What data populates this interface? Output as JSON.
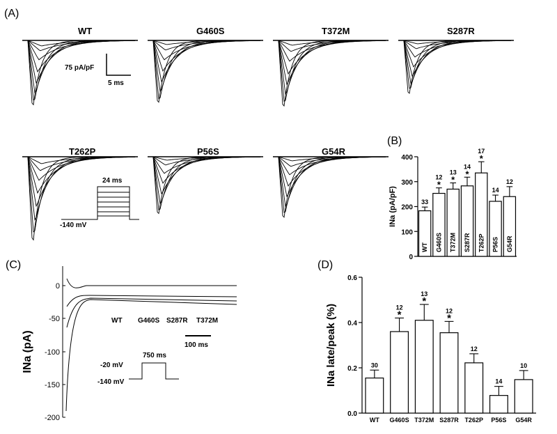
{
  "panels": {
    "a_label": "(A)",
    "b_label": "(B)",
    "c_label": "(C)",
    "d_label": "(D)"
  },
  "panel_a": {
    "traces": [
      "WT",
      "G460S",
      "T372M",
      "S287R",
      "T262P",
      "P56S",
      "G54R"
    ],
    "scale_y": "75 pA/pF",
    "scale_x": "5 ms",
    "protocol_duration": "24 ms",
    "protocol_hold": "-140 mV"
  },
  "panel_c": {
    "ylabel": "INa (pA)",
    "yticks": [
      "0",
      "-50",
      "-100",
      "-150",
      "-200"
    ],
    "trace_labels": [
      "WT",
      "G460S",
      "S287R",
      "T372M"
    ],
    "scale_x": "100 ms",
    "protocol_duration": "750 ms",
    "protocol_step": "-20 mV",
    "protocol_hold": "-140 mV"
  },
  "chart_data": [
    {
      "panel": "(B)",
      "type": "bar",
      "ylabel": "INa (pA/pF)",
      "ylim": [
        0,
        400
      ],
      "yticks": [
        0,
        100,
        200,
        300,
        400
      ],
      "categories": [
        "WT",
        "G460S",
        "T372M",
        "S287R",
        "T262P",
        "P56S",
        "G54R"
      ],
      "values": [
        183,
        253,
        270,
        283,
        335,
        221,
        240
      ],
      "errors": [
        15,
        22,
        25,
        35,
        45,
        25,
        40
      ],
      "n": [
        "33",
        "12",
        "13",
        "14",
        "17",
        "14",
        "12"
      ],
      "significant": [
        false,
        true,
        true,
        true,
        true,
        false,
        false
      ],
      "sig_mark": "*"
    },
    {
      "panel": "(D)",
      "type": "bar",
      "ylabel": "INa late/peak (%)",
      "ylim": [
        0,
        0.6
      ],
      "yticks": [
        "0.0",
        "0.2",
        "0.4",
        "0.6"
      ],
      "categories": [
        "WT",
        "G460S",
        "T372M",
        "S287R",
        "T262P",
        "P56S",
        "G54R"
      ],
      "values": [
        0.155,
        0.36,
        0.41,
        0.355,
        0.222,
        0.078,
        0.148
      ],
      "errors": [
        0.035,
        0.06,
        0.07,
        0.05,
        0.04,
        0.04,
        0.04
      ],
      "n": [
        "30",
        "12",
        "13",
        "12",
        "12",
        "14",
        "10"
      ],
      "significant": [
        false,
        true,
        true,
        true,
        false,
        false,
        false
      ],
      "sig_mark": "*"
    }
  ]
}
